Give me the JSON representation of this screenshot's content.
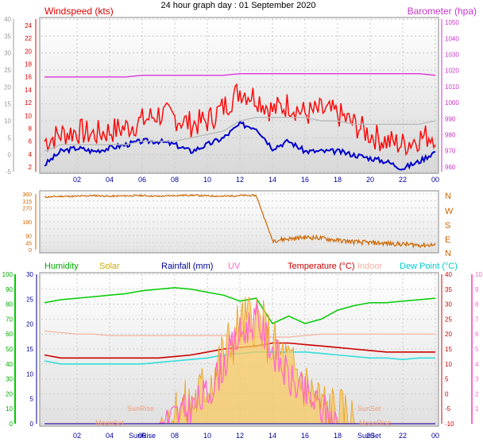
{
  "title": "24 hour graph day : 01 September 2020",
  "chart_data": [
    {
      "type": "line",
      "title": "",
      "ylabel_left": "Windspeed (kts)",
      "ylabel_right": "Barometer (hpa)",
      "x_ticks": [
        "02",
        "04",
        "06",
        "08",
        "10",
        "12",
        "14",
        "16",
        "18",
        "20",
        "22",
        "00"
      ],
      "y_left_ticks": [
        "-5",
        "0",
        "5",
        "10",
        "15",
        "20",
        "25",
        "30",
        "35",
        "40"
      ],
      "y_left2_ticks": [
        "2",
        "4",
        "6",
        "8",
        "10",
        "12",
        "14",
        "16",
        "18",
        "20",
        "22",
        "24"
      ],
      "y_right_ticks": [
        "960",
        "970",
        "980",
        "990",
        "1000",
        "1010",
        "1020",
        "1030",
        "1040",
        "1050"
      ],
      "ylim_left": [
        -5,
        40
      ],
      "ylim_right": [
        957,
        1052
      ],
      "x_hours": [
        0,
        1,
        2,
        3,
        4,
        5,
        6,
        7,
        8,
        9,
        10,
        11,
        12,
        13,
        14,
        15,
        16,
        17,
        18,
        19,
        20,
        21,
        22,
        23,
        24
      ],
      "series": [
        {
          "name": "Gust",
          "color": "#ff0000",
          "values": [
            4,
            6,
            7,
            6,
            7,
            8,
            10,
            12,
            11,
            9,
            10,
            14,
            19,
            17,
            13,
            15,
            12,
            13,
            12,
            9,
            6,
            4,
            3,
            5,
            6
          ]
        },
        {
          "name": "Windspeed",
          "color": "#0000cc",
          "values": [
            -3,
            1,
            2,
            1,
            2,
            3,
            4,
            4,
            3,
            1,
            3,
            5,
            9,
            8,
            2,
            4,
            1,
            1,
            1,
            0,
            -1,
            -2,
            -4,
            -2,
            1
          ]
        },
        {
          "name": "Barometer",
          "color": "#dd33dd",
          "values": [
            1016,
            1016,
            1016,
            1016,
            1016,
            1016,
            1017,
            1017,
            1017,
            1017,
            1017,
            1017,
            1018,
            1018,
            1018,
            1018,
            1018,
            1018,
            1018,
            1018,
            1018,
            1018,
            1018,
            1018,
            1017
          ]
        },
        {
          "name": "Max wind",
          "color": "#bbbbbb",
          "values": [
            1,
            3,
            3,
            3,
            3,
            3,
            4,
            4,
            4,
            5,
            6,
            7,
            10,
            11,
            11,
            11,
            11,
            10,
            10,
            9,
            9,
            9,
            9,
            9,
            10
          ]
        }
      ],
      "annotations": []
    },
    {
      "type": "line",
      "ylabel_right": "direction",
      "y_left_ticks": [
        "0",
        "45",
        "90",
        "135",
        "180",
        "225",
        "270",
        "315",
        "360"
      ],
      "y_right_ticks": [
        "N",
        "W",
        "S",
        "E",
        "N"
      ],
      "ylim": [
        0,
        360
      ],
      "x_hours": [
        0,
        1,
        2,
        3,
        4,
        5,
        6,
        7,
        8,
        9,
        10,
        11,
        12,
        13,
        14,
        15,
        16,
        17,
        18,
        19,
        20,
        21,
        22,
        23,
        24
      ],
      "series": [
        {
          "name": "Wind direction",
          "color": "#cc6600",
          "values": [
            340,
            345,
            345,
            350,
            345,
            348,
            350,
            345,
            350,
            352,
            348,
            345,
            350,
            350,
            60,
            70,
            80,
            75,
            60,
            50,
            45,
            40,
            35,
            30,
            30
          ]
        }
      ]
    },
    {
      "type": "line",
      "legend": [
        "Humidity",
        "Solar",
        "Rainfall (mm)",
        "UV",
        "Temperature (°C)",
        "Indoor",
        "Dew Point (°C)"
      ],
      "legend_colors": [
        "#00aa00",
        "#ccaa00",
        "#000099",
        "#ff66cc",
        "#cc0000",
        "#f4b1a0",
        "#00cccc"
      ],
      "y_left_outer_ticks": [
        "0",
        "10",
        "20",
        "30",
        "40",
        "50",
        "60",
        "70",
        "80",
        "90",
        "100"
      ],
      "y_left_inner_ticks": [
        "0",
        "5",
        "10",
        "15",
        "20",
        "25",
        "30"
      ],
      "y_right_inner_ticks": [
        "-10",
        "-5",
        "0",
        "5",
        "10",
        "15",
        "20",
        "25",
        "30",
        "35",
        "40"
      ],
      "y_right_outer_ticks": [
        "1",
        "2",
        "3",
        "4",
        "5",
        "6",
        "7",
        "8",
        "9",
        "10"
      ],
      "x_ticks": [
        "02",
        "04",
        "06",
        "08",
        "10",
        "12",
        "14",
        "16",
        "18",
        "20",
        "22",
        "00"
      ],
      "annotations": [
        "SunRise",
        "MoonSet",
        "SunSet",
        "MoonRise"
      ],
      "x_hours": [
        0,
        1,
        2,
        3,
        4,
        5,
        6,
        7,
        8,
        9,
        10,
        11,
        12,
        13,
        14,
        15,
        16,
        17,
        18,
        19,
        20,
        21,
        22,
        23,
        24
      ],
      "series": [
        {
          "name": "Humidity",
          "color": "#00cc00",
          "values": [
            81,
            83,
            84,
            85,
            86,
            87,
            89,
            90,
            91,
            90,
            88,
            86,
            82,
            84,
            67,
            72,
            67,
            70,
            76,
            79,
            81,
            81,
            82,
            83,
            84
          ]
        },
        {
          "name": "Temperature",
          "color": "#cc0000",
          "values": [
            13,
            12,
            12,
            12,
            12,
            12,
            12,
            12,
            12.5,
            13,
            14,
            15,
            15.5,
            16,
            17,
            17,
            16.5,
            16,
            15.5,
            15,
            14.5,
            14,
            14,
            14,
            14
          ]
        },
        {
          "name": "Dew Point",
          "color": "#33dddd",
          "values": [
            11,
            10,
            10,
            10,
            10,
            10,
            10,
            10.5,
            11,
            11.5,
            12,
            13,
            13.5,
            14,
            14,
            14,
            14,
            13.5,
            13,
            12.5,
            12,
            12,
            11.5,
            12,
            12
          ]
        },
        {
          "name": "Indoor",
          "color": "#f4b1a0",
          "values": [
            21,
            20.5,
            20,
            20,
            19.5,
            19.5,
            19.5,
            19.5,
            19.5,
            19.5,
            19.5,
            19.5,
            19,
            19,
            19,
            19,
            19.5,
            20,
            20,
            20,
            20,
            20,
            20,
            20,
            20
          ]
        },
        {
          "name": "Solar",
          "color": "#f0b030",
          "values": [
            0,
            0,
            0,
            0,
            0,
            0,
            0,
            0,
            1,
            2,
            4,
            7,
            10,
            11,
            8,
            6,
            4,
            2,
            1,
            0,
            0,
            0,
            0,
            0,
            0
          ]
        },
        {
          "name": "UV",
          "color": "#ff66cc",
          "values": [
            0,
            0,
            0,
            0,
            0,
            0,
            0,
            0,
            0.5,
            1,
            2,
            4,
            6,
            7,
            5,
            3,
            2,
            1,
            0,
            0,
            0,
            0,
            0,
            0,
            0
          ]
        },
        {
          "name": "Rainfall",
          "color": "#000099",
          "values": [
            0,
            0,
            0,
            0,
            0,
            0,
            0,
            0,
            0,
            0,
            0,
            0,
            0,
            0,
            0,
            0,
            0,
            0,
            0,
            0,
            0,
            0,
            0,
            0,
            0
          ]
        }
      ]
    }
  ]
}
